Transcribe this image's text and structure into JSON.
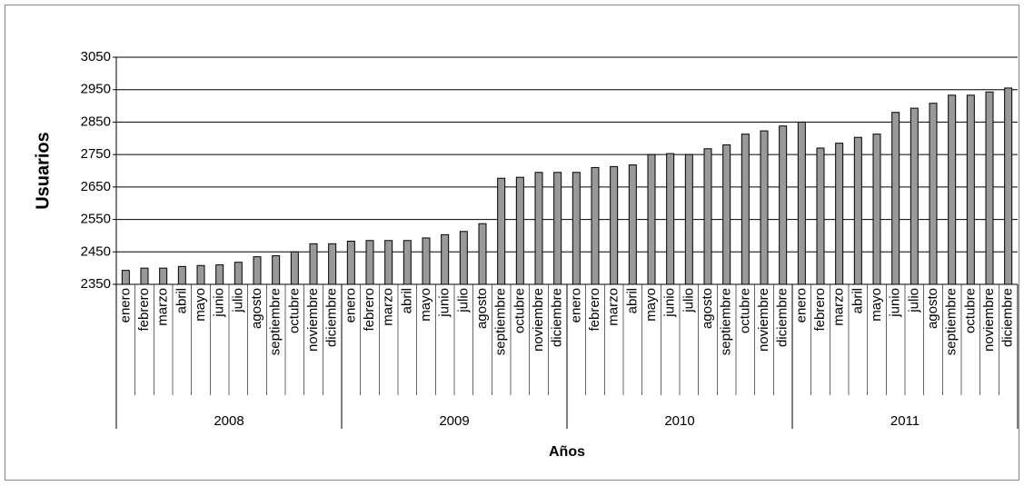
{
  "chart_data": {
    "type": "bar",
    "y_label": "Usuarios",
    "x_label": "Años",
    "color": "#999999",
    "grid": true,
    "ylim": [
      2350,
      3050
    ],
    "yticks": [
      2350,
      2450,
      2550,
      2650,
      2750,
      2850,
      2950,
      3050
    ],
    "groups": [
      {
        "name": "2008",
        "categories": [
          "enero",
          "febrero",
          "marzo",
          "abril",
          "mayo",
          "junio",
          "julio",
          "agosto",
          "septiembre",
          "octubre",
          "noviembre",
          "diciembre"
        ],
        "values": [
          2393,
          2400,
          2400,
          2405,
          2408,
          2410,
          2418,
          2435,
          2438,
          2450,
          2475,
          2475
        ]
      },
      {
        "name": "2009",
        "categories": [
          "enero",
          "febrero",
          "marzo",
          "abril",
          "mayo",
          "junio",
          "julio",
          "agosto",
          "septiembre",
          "octubre",
          "noviembre",
          "diciembre"
        ],
        "values": [
          2483,
          2485,
          2485,
          2485,
          2493,
          2503,
          2513,
          2537,
          2677,
          2680,
          2695,
          2695
        ]
      },
      {
        "name": "2010",
        "categories": [
          "enero",
          "febrero",
          "marzo",
          "abril",
          "mayo",
          "junio",
          "julio",
          "agosto",
          "septiembre",
          "octubre",
          "noviembre",
          "diciembre"
        ],
        "values": [
          2695,
          2710,
          2713,
          2718,
          2750,
          2753,
          2750,
          2768,
          2780,
          2813,
          2823,
          2838
        ]
      },
      {
        "name": "2011",
        "categories": [
          "enero",
          "febrero",
          "marzo",
          "abril",
          "mayo",
          "junio",
          "julio",
          "agosto",
          "septiembre",
          "octubre",
          "noviembre",
          "diciembre"
        ],
        "values": [
          2850,
          2770,
          2785,
          2803,
          2813,
          2880,
          2893,
          2908,
          2933,
          2933,
          2943,
          2955
        ]
      }
    ]
  }
}
